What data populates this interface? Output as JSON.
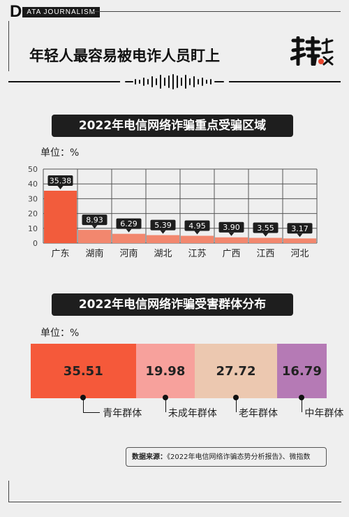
{
  "brand": {
    "initial": "D",
    "rest": "ATA JOURNALISM"
  },
  "headline": "年轻人最容易被电诈人员盯上",
  "logo_icon": "tefang-logo-icon",
  "section1": {
    "title": "2022年电信网络诈骗重点受骗区域",
    "unit": "单位：%"
  },
  "section2": {
    "title": "2022年电信网络诈骗受害群体分布",
    "unit": "单位：%"
  },
  "source": {
    "label": "数据来源：",
    "text": "《2022年电信网络诈骗态势分析报告》、微指数"
  },
  "colors": {
    "highlight": "#f25c3c",
    "muted": "#f2876e",
    "bar_label_bg": "#1e1e1e"
  },
  "chart_data": [
    {
      "type": "bar",
      "title": "2022年电信网络诈骗重点受骗区域",
      "unit": "单位：%",
      "categories": [
        "广东",
        "湖南",
        "河南",
        "湖北",
        "江苏",
        "广西",
        "江西",
        "河北"
      ],
      "values": [
        35.38,
        8.93,
        6.29,
        5.39,
        4.95,
        3.9,
        3.55,
        3.17
      ],
      "value_labels": [
        "35.38",
        "8.93",
        "6.29",
        "5.39",
        "4.95",
        "3.90",
        "3.55",
        "3.17"
      ],
      "yticks": [
        "0",
        "10",
        "20",
        "30",
        "40",
        "50"
      ],
      "ylim": [
        0,
        50
      ],
      "grid": true
    },
    {
      "type": "bar",
      "subtype": "stacked-100",
      "title": "2022年电信网络诈骗受害群体分布",
      "unit": "单位：%",
      "categories": [
        "青年群体",
        "未成年群体",
        "老年群体",
        "中年群体"
      ],
      "values": [
        35.51,
        19.98,
        27.72,
        16.79
      ],
      "value_labels": [
        "35.51",
        "19.98",
        "27.72",
        "16.79"
      ],
      "colors": [
        "#f5593a",
        "#f7a19c",
        "#ecc8b0",
        "#b57ab5"
      ]
    }
  ]
}
